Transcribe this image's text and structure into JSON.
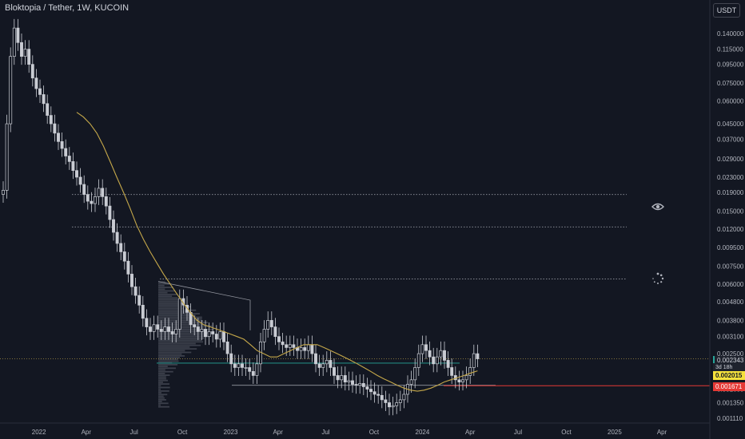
{
  "header": {
    "title": "Bloktopia / Tether, 1W, KUCOIN",
    "currency_button": "USDT"
  },
  "price_tags": {
    "current": "0.002343",
    "countdown": "3d 18h",
    "moving_average": "0.002015",
    "support": "0.001671"
  },
  "icons": {
    "visibility": "eye-icon",
    "loading": "spinner-icon"
  },
  "colors": {
    "background": "#131722",
    "candle": "#c9ccd3",
    "moving_average": "#c5a84a",
    "support_line": "#e53935",
    "current_price_line": "#26a69a",
    "axis_text": "#b2b5be"
  },
  "chart_data": {
    "type": "candlestick",
    "title": "Bloktopia / Tether, 1W, KUCOIN",
    "y_scale": "log",
    "y_ticks": [
      0.14,
      0.115,
      0.095,
      0.075,
      0.06,
      0.045,
      0.037,
      0.029,
      0.023,
      0.019,
      0.015,
      0.012,
      0.0095,
      0.0075,
      0.006,
      0.0048,
      0.0038,
      0.0031,
      0.0025,
      0.002,
      0.0016,
      0.00135,
      0.00111
    ],
    "x_ticks": [
      "2022",
      "Apr",
      "Jul",
      "Oct",
      "2023",
      "Apr",
      "Jul",
      "Oct",
      "2024",
      "Apr",
      "Jul",
      "Oct",
      "2025",
      "Apr"
    ],
    "x_tick_dates": [
      "2022-01-01",
      "2022-04-01",
      "2022-07-01",
      "2022-10-01",
      "2023-01-01",
      "2023-04-01",
      "2023-07-01",
      "2023-10-01",
      "2024-01-01",
      "2024-04-01",
      "2024-07-01",
      "2024-10-01",
      "2025-01-01",
      "2025-04-01"
    ],
    "weekly_closes": [
      0.0195,
      0.045,
      0.105,
      0.15,
      0.125,
      0.105,
      0.115,
      0.095,
      0.08,
      0.07,
      0.065,
      0.058,
      0.05,
      0.045,
      0.04,
      0.036,
      0.033,
      0.03,
      0.028,
      0.025,
      0.023,
      0.021,
      0.0185,
      0.017,
      0.0165,
      0.018,
      0.02,
      0.018,
      0.016,
      0.0135,
      0.0115,
      0.01,
      0.009,
      0.008,
      0.0068,
      0.0058,
      0.0052,
      0.0046,
      0.0039,
      0.0035,
      0.0033,
      0.0036,
      0.0034,
      0.0033,
      0.0035,
      0.0033,
      0.0032,
      0.0034,
      0.005,
      0.0046,
      0.0042,
      0.0036,
      0.0035,
      0.0033,
      0.0034,
      0.0031,
      0.0033,
      0.0032,
      0.003,
      0.0033,
      0.0029,
      0.0025,
      0.0022,
      0.0021,
      0.0022,
      0.0021,
      0.0021,
      0.002,
      0.0019,
      0.0022,
      0.0029,
      0.0034,
      0.0038,
      0.0035,
      0.0031,
      0.0029,
      0.0028,
      0.0027,
      0.0028,
      0.0027,
      0.0026,
      0.0027,
      0.0026,
      0.0028,
      0.0025,
      0.0022,
      0.0021,
      0.0022,
      0.0023,
      0.0021,
      0.0019,
      0.0018,
      0.0019,
      0.00175,
      0.00178,
      0.0017,
      0.00168,
      0.00172,
      0.00165,
      0.0016,
      0.00155,
      0.0015,
      0.00148,
      0.0014,
      0.00135,
      0.00128,
      0.0013,
      0.00135,
      0.0014,
      0.0015,
      0.0017,
      0.0018,
      0.0021,
      0.0025,
      0.0028,
      0.0026,
      0.0024,
      0.0022,
      0.0024,
      0.0026,
      0.0023,
      0.0021,
      0.0019,
      0.0018,
      0.00175,
      0.0018,
      0.0019,
      0.0021,
      0.0025,
      0.002343
    ],
    "moving_average_series": [
      0.052,
      0.049,
      0.045,
      0.04,
      0.034,
      0.028,
      0.023,
      0.019,
      0.0155,
      0.0125,
      0.0105,
      0.009,
      0.0078,
      0.0068,
      0.006,
      0.0053,
      0.0047,
      0.0042,
      0.0038,
      0.0036,
      0.0035,
      0.0034,
      0.0033,
      0.0032,
      0.0031,
      0.003,
      0.0028,
      0.0026,
      0.0025,
      0.0024,
      0.0024,
      0.0025,
      0.0026,
      0.0027,
      0.0028,
      0.0028,
      0.0028,
      0.0027,
      0.0026,
      0.0025,
      0.0024,
      0.0023,
      0.0022,
      0.0021,
      0.002,
      0.0019,
      0.00182,
      0.00175,
      0.00168,
      0.00162,
      0.00158,
      0.00156,
      0.00158,
      0.00162,
      0.00168,
      0.00175,
      0.0018,
      0.00185,
      0.0019,
      0.00196,
      0.002015
    ],
    "horizontal_levels": [
      {
        "style": "dotted",
        "value": 0.0185
      },
      {
        "style": "dotted",
        "value": 0.0123
      },
      {
        "style": "dotted",
        "value": 0.0064
      },
      {
        "style": "solid",
        "value": 0.00168
      }
    ],
    "current_price": 0.002343,
    "moving_average_value": 0.002015,
    "support_value": 0.001671,
    "grid": false,
    "volume_profile": true
  }
}
